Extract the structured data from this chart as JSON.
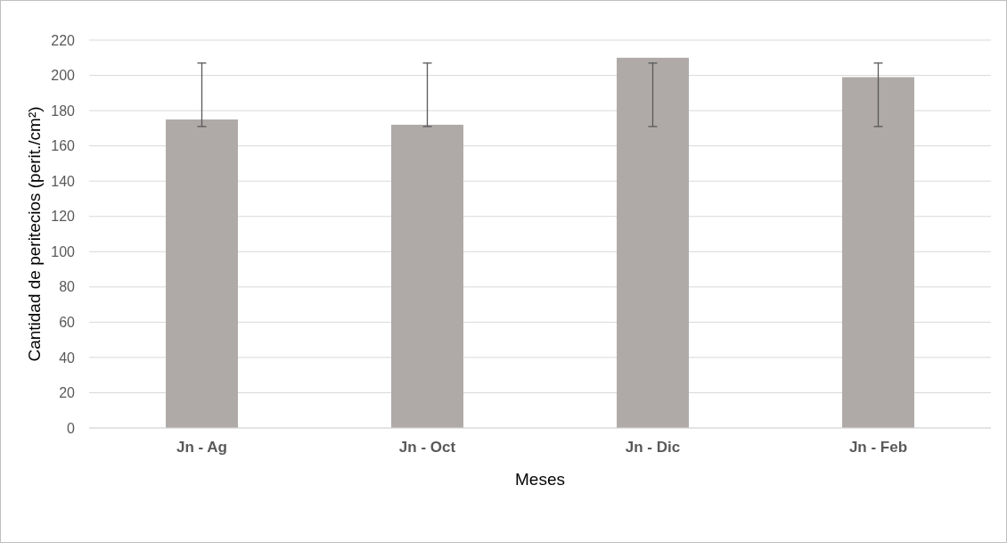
{
  "chart_data": {
    "type": "bar",
    "xlabel": "Meses",
    "ylabel": "Cantidad de peritecios (perit./cm²)",
    "categories": [
      "Jn - Ag",
      "Jn - Oct",
      "Jn - Dic",
      "Jn - Feb"
    ],
    "values": [
      175,
      172,
      210,
      199
    ],
    "errors": [
      [
        171,
        207
      ],
      [
        171,
        207
      ],
      [
        171,
        207
      ],
      [
        171,
        207
      ]
    ],
    "color": "#afaaa8",
    "ylim": [
      0,
      220
    ],
    "yticks": [
      0,
      20,
      40,
      60,
      80,
      100,
      120,
      140,
      160,
      180,
      200,
      220
    ],
    "grid": "y"
  }
}
